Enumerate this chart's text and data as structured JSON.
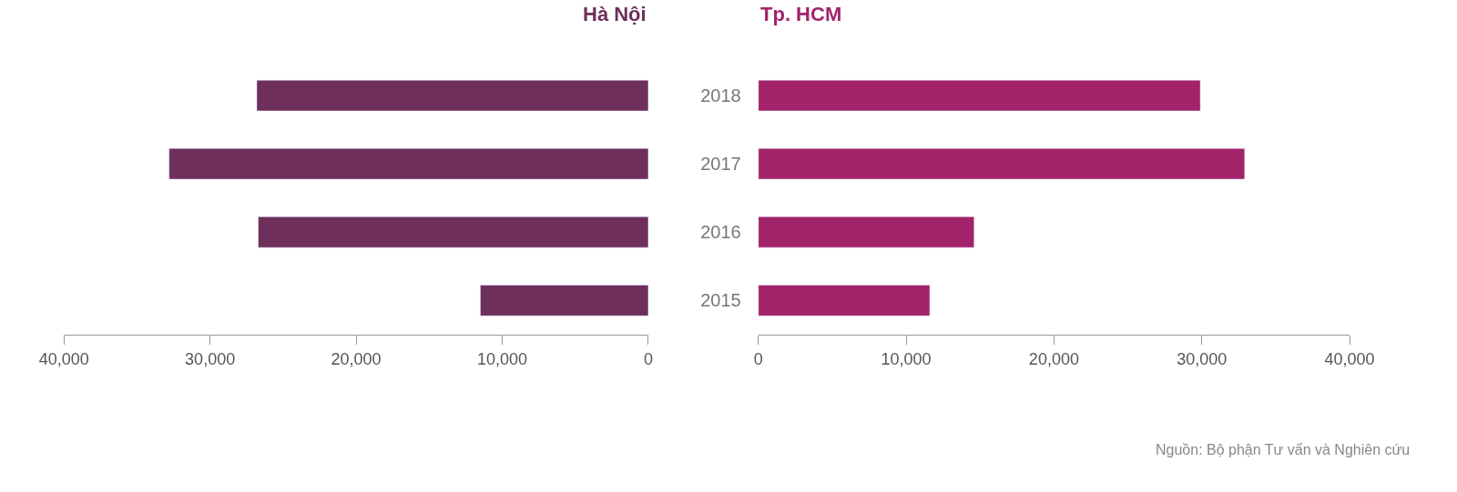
{
  "chart_data": [
    {
      "type": "bar",
      "orientation": "horizontal",
      "categories": [
        "2018",
        "2017",
        "2016",
        "2015"
      ],
      "series": [
        {
          "name": "Hà Nội",
          "color": "#6e2f5b",
          "values": [
            26800,
            32800,
            26700,
            11500
          ]
        }
      ],
      "xlim": [
        40000,
        0
      ],
      "xticks": [
        {
          "value": 40000,
          "label": "40,000"
        },
        {
          "value": 30000,
          "label": "30,000"
        },
        {
          "value": 20000,
          "label": "20,000"
        },
        {
          "value": 10000,
          "label": "10,000"
        },
        0
      ],
      "tick_labels": "x",
      "legend": false
    },
    {
      "type": "bar",
      "orientation": "horizontal",
      "categories": [
        "2018",
        "2017",
        "2016",
        "2015"
      ],
      "series": [
        {
          "name": "Tp. HCM",
          "color": "#a3236b",
          "values": [
            29900,
            32900,
            14600,
            11600
          ]
        }
      ],
      "xlim": [
        0,
        40000
      ],
      "xticks": [
        0,
        {
          "value": 10000,
          "label": "10,000"
        },
        {
          "value": 20000,
          "label": "20,000"
        },
        {
          "value": 30000,
          "label": "30,000"
        },
        {
          "value": 40000,
          "label": "40,000"
        }
      ],
      "legend": false,
      "annotations": [
        "Nguồn: Bộ phận Tư vấn và Nghiên cứu"
      ]
    }
  ]
}
